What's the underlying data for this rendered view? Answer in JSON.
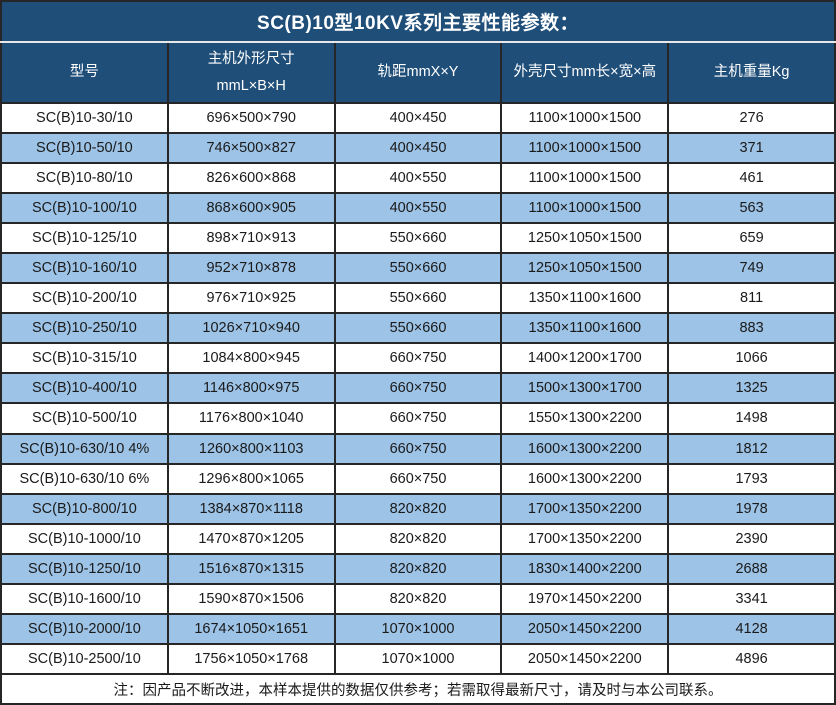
{
  "title": "SC(B)10型10KV系列主要性能参数：",
  "colors": {
    "header_bg": "#1F4E79",
    "alt_row_bg": "#9DC3E6",
    "border": "#262626",
    "header_text": "#FFFFFF",
    "body_text": "#1A1A1A"
  },
  "table": {
    "columns": {
      "model": "型号",
      "host_size_line1": "主机外形尺寸",
      "host_size_line2": "mmL×B×H",
      "rail_gauge": "轨距mmX×Y",
      "shell_size": "外壳尺寸mm长×宽×高",
      "weight": "主机重量Kg"
    },
    "rows": [
      {
        "model": "SC(B)10-30/10",
        "host_size": "696×500×790",
        "rail_gauge": "400×450",
        "shell_size": "1100×1000×1500",
        "weight": "276"
      },
      {
        "model": "SC(B)10-50/10",
        "host_size": "746×500×827",
        "rail_gauge": "400×450",
        "shell_size": "1100×1000×1500",
        "weight": "371"
      },
      {
        "model": "SC(B)10-80/10",
        "host_size": "826×600×868",
        "rail_gauge": "400×550",
        "shell_size": "1100×1000×1500",
        "weight": "461"
      },
      {
        "model": "SC(B)10-100/10",
        "host_size": "868×600×905",
        "rail_gauge": "400×550",
        "shell_size": "1100×1000×1500",
        "weight": "563"
      },
      {
        "model": "SC(B)10-125/10",
        "host_size": "898×710×913",
        "rail_gauge": "550×660",
        "shell_size": "1250×1050×1500",
        "weight": "659"
      },
      {
        "model": "SC(B)10-160/10",
        "host_size": "952×710×878",
        "rail_gauge": "550×660",
        "shell_size": "1250×1050×1500",
        "weight": "749"
      },
      {
        "model": "SC(B)10-200/10",
        "host_size": "976×710×925",
        "rail_gauge": "550×660",
        "shell_size": "1350×1100×1600",
        "weight": "811"
      },
      {
        "model": "SC(B)10-250/10",
        "host_size": "1026×710×940",
        "rail_gauge": "550×660",
        "shell_size": "1350×1100×1600",
        "weight": "883"
      },
      {
        "model": "SC(B)10-315/10",
        "host_size": "1084×800×945",
        "rail_gauge": "660×750",
        "shell_size": "1400×1200×1700",
        "weight": "1066"
      },
      {
        "model": "SC(B)10-400/10",
        "host_size": "1146×800×975",
        "rail_gauge": "660×750",
        "shell_size": "1500×1300×1700",
        "weight": "1325"
      },
      {
        "model": "SC(B)10-500/10",
        "host_size": "1176×800×1040",
        "rail_gauge": "660×750",
        "shell_size": "1550×1300×2200",
        "weight": "1498"
      },
      {
        "model": "SC(B)10-630/10 4%",
        "host_size": "1260×800×1103",
        "rail_gauge": "660×750",
        "shell_size": "1600×1300×2200",
        "weight": "1812"
      },
      {
        "model": "SC(B)10-630/10 6%",
        "host_size": "1296×800×1065",
        "rail_gauge": "660×750",
        "shell_size": "1600×1300×2200",
        "weight": "1793"
      },
      {
        "model": "SC(B)10-800/10",
        "host_size": "1384×870×1118",
        "rail_gauge": "820×820",
        "shell_size": "1700×1350×2200",
        "weight": "1978"
      },
      {
        "model": "SC(B)10-1000/10",
        "host_size": "1470×870×1205",
        "rail_gauge": "820×820",
        "shell_size": "1700×1350×2200",
        "weight": "2390"
      },
      {
        "model": "SC(B)10-1250/10",
        "host_size": "1516×870×1315",
        "rail_gauge": "820×820",
        "shell_size": "1830×1400×2200",
        "weight": "2688"
      },
      {
        "model": "SC(B)10-1600/10",
        "host_size": "1590×870×1506",
        "rail_gauge": "820×820",
        "shell_size": "1970×1450×2200",
        "weight": "3341"
      },
      {
        "model": "SC(B)10-2000/10",
        "host_size": "1674×1050×1651",
        "rail_gauge": "1070×1000",
        "shell_size": "2050×1450×2200",
        "weight": "4128"
      },
      {
        "model": "SC(B)10-2500/10",
        "host_size": "1756×1050×1768",
        "rail_gauge": "1070×1000",
        "shell_size": "2050×1450×2200",
        "weight": "4896"
      }
    ]
  },
  "note": "注：因产品不断改进，本样本提供的数据仅供参考；若需取得最新尺寸，请及时与本公司联系。"
}
